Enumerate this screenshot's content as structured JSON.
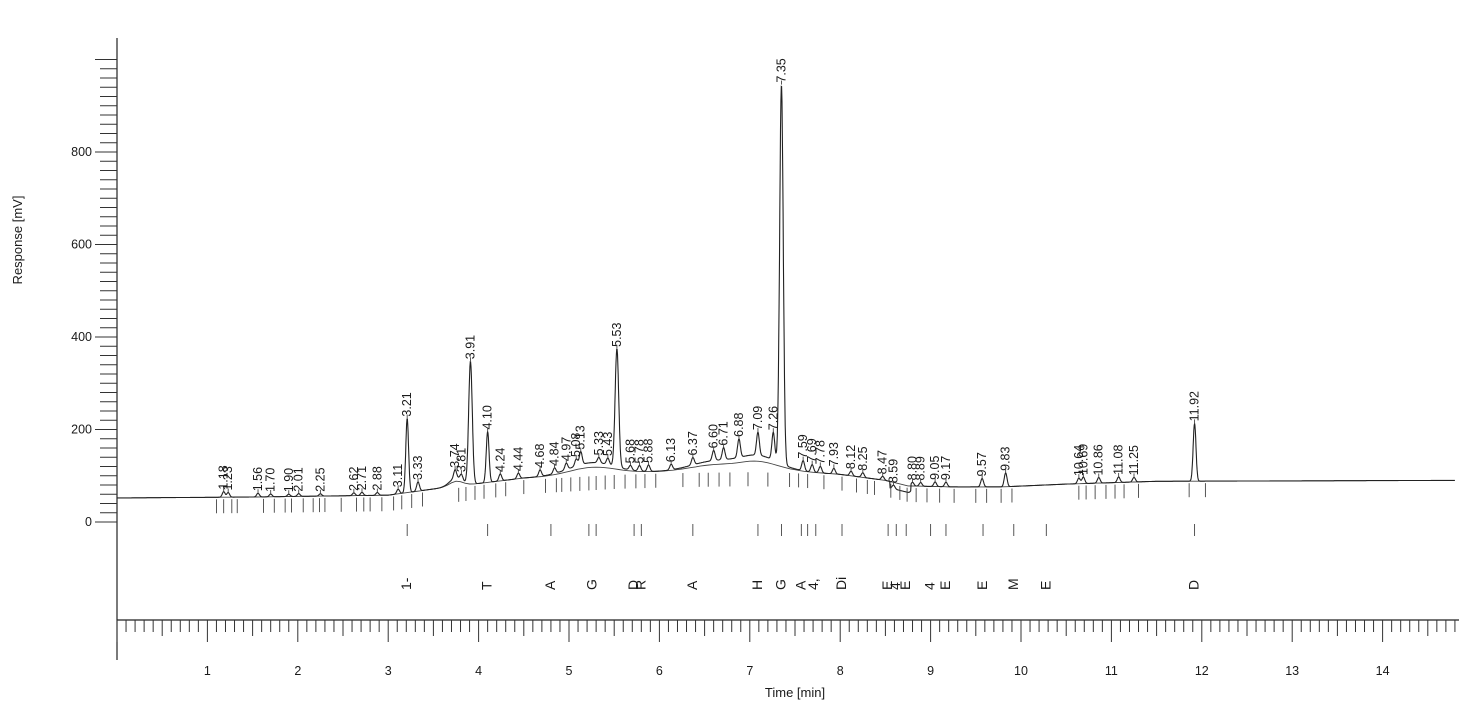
{
  "chart_data": {
    "type": "line",
    "title": "",
    "xlabel": "Time [min]",
    "ylabel": "Response [mV]",
    "xlim": [
      0,
      14.8
    ],
    "ylim": [
      -195,
      1060
    ],
    "x_ticks": [
      1,
      2,
      3,
      4,
      5,
      6,
      7,
      8,
      9,
      10,
      11,
      12,
      13,
      14
    ],
    "y_ticks": [
      0,
      200,
      400,
      600,
      800
    ],
    "grid": false,
    "legend": "none",
    "peaks": [
      {
        "t": 1.18,
        "label": "1.18",
        "h": 12
      },
      {
        "t": 1.23,
        "label": "1.23",
        "h": 10
      },
      {
        "t": 1.56,
        "label": "1.56",
        "h": 8
      },
      {
        "t": 1.7,
        "label": "1.70",
        "h": 6
      },
      {
        "t": 1.9,
        "label": "1.90",
        "h": 5
      },
      {
        "t": 2.01,
        "label": "2.01",
        "h": 6
      },
      {
        "t": 2.25,
        "label": "2.25",
        "h": 5
      },
      {
        "t": 2.62,
        "label": "2.62",
        "h": 6
      },
      {
        "t": 2.71,
        "label": "2.71",
        "h": 7
      },
      {
        "t": 2.88,
        "label": "2.88",
        "h": 6
      },
      {
        "t": 3.11,
        "label": "3.11",
        "h": 10
      },
      {
        "t": 3.21,
        "label": "3.21",
        "h": 160
      },
      {
        "t": 3.33,
        "label": "3.33",
        "h": 20
      },
      {
        "t": 3.74,
        "label": "3.74",
        "h": 18
      },
      {
        "t": 3.81,
        "label": "3.81",
        "h": 12
      },
      {
        "t": 3.91,
        "label": "3.91",
        "h": 265
      },
      {
        "t": 4.1,
        "label": "4.10",
        "h": 110
      },
      {
        "t": 4.24,
        "label": "4.24",
        "h": 15
      },
      {
        "t": 4.44,
        "label": "4.44",
        "h": 12
      },
      {
        "t": 4.68,
        "label": "4.68",
        "h": 14
      },
      {
        "t": 4.84,
        "label": "4.84",
        "h": 12
      },
      {
        "t": 4.97,
        "label": "4.97",
        "h": 14
      },
      {
        "t": 5.08,
        "label": "5.08",
        "h": 15
      },
      {
        "t": 5.13,
        "label": "5.13",
        "h": 28
      },
      {
        "t": 5.33,
        "label": "5.33",
        "h": 12
      },
      {
        "t": 5.43,
        "label": "5.43",
        "h": 14
      },
      {
        "t": 5.53,
        "label": "5.53",
        "h": 255
      },
      {
        "t": 5.68,
        "label": "5.68",
        "h": 10
      },
      {
        "t": 5.78,
        "label": "5.78",
        "h": 12
      },
      {
        "t": 5.88,
        "label": "5.88",
        "h": 14
      },
      {
        "t": 6.13,
        "label": "6.13",
        "h": 12
      },
      {
        "t": 6.37,
        "label": "6.37",
        "h": 16
      },
      {
        "t": 6.6,
        "label": "6.60",
        "h": 22
      },
      {
        "t": 6.71,
        "label": "6.71",
        "h": 26
      },
      {
        "t": 6.88,
        "label": "6.88",
        "h": 40
      },
      {
        "t": 7.09,
        "label": "7.09",
        "h": 50
      },
      {
        "t": 7.26,
        "label": "7.26",
        "h": 60
      },
      {
        "t": 7.35,
        "label": "7.35",
        "h": 820
      },
      {
        "t": 7.59,
        "label": "7.59",
        "h": 22
      },
      {
        "t": 7.69,
        "label": "7.69",
        "h": 16
      },
      {
        "t": 7.78,
        "label": "7.78",
        "h": 14
      },
      {
        "t": 7.93,
        "label": "7.93",
        "h": 12
      },
      {
        "t": 8.12,
        "label": "8.12",
        "h": 10
      },
      {
        "t": 8.25,
        "label": "8.25",
        "h": 10
      },
      {
        "t": 8.47,
        "label": "8.47",
        "h": 8
      },
      {
        "t": 8.59,
        "label": "8.59",
        "h": 8
      },
      {
        "t": 8.8,
        "label": "8.80",
        "h": 8
      },
      {
        "t": 8.89,
        "label": "8.89",
        "h": 8
      },
      {
        "t": 9.05,
        "label": "9.05",
        "h": 10
      },
      {
        "t": 9.17,
        "label": "9.17",
        "h": 10
      },
      {
        "t": 9.57,
        "label": "9.57",
        "h": 18
      },
      {
        "t": 9.83,
        "label": "9.83",
        "h": 30
      },
      {
        "t": 10.64,
        "label": "10.64",
        "h": 12
      },
      {
        "t": 10.69,
        "label": "10.69",
        "h": 14
      },
      {
        "t": 10.86,
        "label": "10.86",
        "h": 12
      },
      {
        "t": 11.08,
        "label": "11.08",
        "h": 12
      },
      {
        "t": 11.25,
        "label": "11.25",
        "h": 10
      },
      {
        "t": 11.92,
        "label": "11.92",
        "h": 125
      }
    ],
    "marker_times": [
      1.1,
      1.18,
      1.27,
      1.33,
      1.62,
      1.74,
      1.86,
      1.93,
      2.06,
      2.17,
      2.24,
      2.3,
      2.48,
      2.65,
      2.73,
      2.8,
      2.93,
      3.06,
      3.15,
      3.26,
      3.38,
      3.78,
      3.86,
      3.96,
      4.06,
      4.19,
      4.3,
      4.5,
      4.74,
      4.86,
      4.92,
      5.02,
      5.12,
      5.22,
      5.3,
      5.4,
      5.5,
      5.62,
      5.74,
      5.84,
      5.96,
      6.26,
      6.44,
      6.54,
      6.66,
      6.78,
      6.98,
      7.2,
      7.44,
      7.54,
      7.64,
      7.82,
      8.02,
      8.18,
      8.3,
      8.38,
      8.56,
      8.66,
      8.74,
      8.84,
      8.96,
      9.1,
      9.26,
      9.5,
      9.62,
      9.78,
      9.9,
      10.64,
      10.72,
      10.82,
      10.94,
      11.04,
      11.14,
      11.3,
      11.86,
      12.04
    ],
    "event_times": [
      3.21,
      4.1,
      4.8,
      5.22,
      5.3,
      5.72,
      5.8,
      6.37,
      7.09,
      7.35,
      7.57,
      7.64,
      7.73,
      8.02,
      8.53,
      8.62,
      8.73,
      9.0,
      9.17,
      9.58,
      9.92,
      10.28,
      11.92
    ],
    "components": [
      {
        "t": 3.21,
        "label": "1-"
      },
      {
        "t": 4.1,
        "label": "T"
      },
      {
        "t": 4.8,
        "label": "A"
      },
      {
        "t": 5.26,
        "label": "G"
      },
      {
        "t": 5.72,
        "label": "D"
      },
      {
        "t": 5.8,
        "label": "R"
      },
      {
        "t": 6.37,
        "label": "A"
      },
      {
        "t": 7.09,
        "label": "H"
      },
      {
        "t": 7.35,
        "label": "G"
      },
      {
        "t": 7.57,
        "label": "A"
      },
      {
        "t": 7.71,
        "label": "4,"
      },
      {
        "t": 8.02,
        "label": "Di"
      },
      {
        "t": 8.53,
        "label": "E"
      },
      {
        "t": 8.62,
        "label": "4"
      },
      {
        "t": 8.73,
        "label": "E"
      },
      {
        "t": 9.0,
        "label": "4"
      },
      {
        "t": 9.17,
        "label": "E"
      },
      {
        "t": 9.58,
        "label": "E"
      },
      {
        "t": 9.92,
        "label": "M"
      },
      {
        "t": 10.28,
        "label": "E"
      },
      {
        "t": 11.92,
        "label": "D"
      }
    ]
  }
}
